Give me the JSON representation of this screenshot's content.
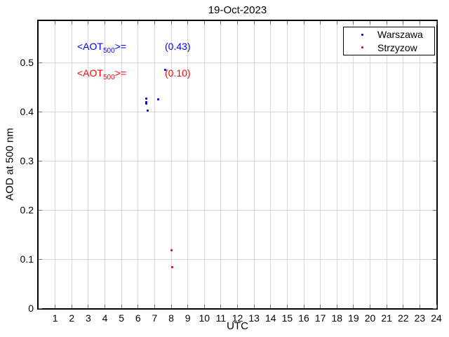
{
  "colors": {
    "grid": "#d6d6d6",
    "axis": "#000000",
    "tick_mark": "#6f6f6f"
  },
  "chart_data": {
    "type": "scatter",
    "title": "19-Oct-2023",
    "xlabel": "UTC",
    "ylabel": "AOD at 500 nm",
    "xlim": [
      0,
      24
    ],
    "ylim": [
      0,
      0.585
    ],
    "grid": true,
    "x_ticks": [
      1,
      2,
      3,
      4,
      5,
      6,
      7,
      8,
      9,
      10,
      11,
      12,
      13,
      14,
      15,
      16,
      17,
      18,
      19,
      20,
      21,
      22,
      23,
      24
    ],
    "x_tick_labels": [
      "1",
      "2",
      "3",
      "4",
      "5",
      "6",
      "7",
      "8",
      "9",
      "10",
      "11",
      "12",
      "13",
      "14",
      "15",
      "16",
      "17",
      "18",
      "19",
      "20",
      "21",
      "22",
      "23",
      "24"
    ],
    "y_ticks": [
      0,
      0.1,
      0.2,
      0.3,
      0.4,
      0.5
    ],
    "y_tick_labels": [
      "0",
      "0.1",
      "0.2",
      "0.3",
      "0.4",
      "0.5"
    ],
    "legend": {
      "position": "top-right",
      "entries": [
        {
          "label": "Warszawa",
          "color": "#0000ff",
          "marker": "dot"
        },
        {
          "label": "Strzyzow",
          "color": "#ff0000",
          "marker": "dot"
        }
      ]
    },
    "series": [
      {
        "name": "Warszawa",
        "color": "#0000ff",
        "mean_aod": 0.43,
        "points": [
          [
            6.48,
            0.427
          ],
          [
            6.49,
            0.42
          ],
          [
            6.51,
            0.417
          ],
          [
            6.6,
            0.402
          ],
          [
            7.22,
            0.426
          ],
          [
            7.64,
            0.485
          ]
        ]
      },
      {
        "name": "Strzyzow",
        "color": "#ff0000",
        "mean_aod": 0.1,
        "points": [
          [
            8.01,
            0.118
          ],
          [
            8.05,
            0.083
          ]
        ]
      }
    ],
    "annotations": [
      {
        "pre": "<AOT",
        "sub": "500",
        "post": ">=",
        "value": "(0.43)",
        "color": "#0000ff"
      },
      {
        "pre": "<AOT",
        "sub": "500",
        "post": ">=",
        "value": "(0.10)",
        "color": "#ff0000"
      }
    ]
  }
}
